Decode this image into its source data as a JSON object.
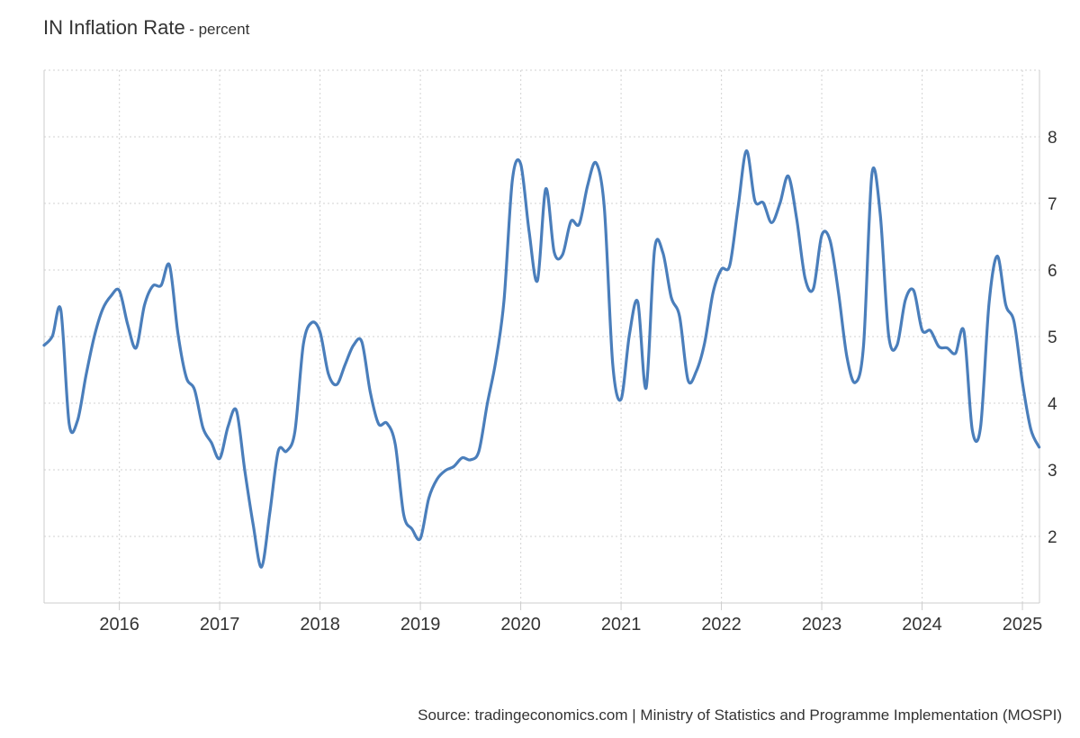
{
  "header": {
    "title": "IN Inflation Rate",
    "unit": "- percent"
  },
  "footer": {
    "source": "Source: tradingeconomics.com | Ministry of Statistics and Programme Implementation (MOSPI)"
  },
  "colors": {
    "line": "#4a7ebb",
    "grid": "#d9d9d9",
    "axis": "#cccccc",
    "text": "#333333"
  },
  "chart_data": {
    "type": "line",
    "title": "IN Inflation Rate",
    "ylabel": "percent",
    "xlabel": "",
    "ylim": [
      1.0,
      9.0
    ],
    "xlim": [
      2015.25,
      2025.17
    ],
    "yticks": [
      2,
      3,
      4,
      5,
      6,
      7,
      8
    ],
    "xticks": [
      "2016",
      "2017",
      "2018",
      "2019",
      "2020",
      "2021",
      "2022",
      "2023",
      "2024",
      "2025"
    ],
    "grid": true,
    "legend": "none",
    "series": [
      {
        "x": [
          "2015-04",
          "2015-05",
          "2015-06",
          "2015-07",
          "2015-08",
          "2015-09",
          "2015-10",
          "2015-11",
          "2015-12",
          "2016-01",
          "2016-02",
          "2016-03",
          "2016-04",
          "2016-05",
          "2016-06",
          "2016-07",
          "2016-08",
          "2016-09",
          "2016-10",
          "2016-11",
          "2016-12",
          "2017-01",
          "2017-02",
          "2017-03",
          "2017-04",
          "2017-05",
          "2017-06",
          "2017-07",
          "2017-08",
          "2017-09",
          "2017-10",
          "2017-11",
          "2017-12",
          "2018-01",
          "2018-02",
          "2018-03",
          "2018-04",
          "2018-05",
          "2018-06",
          "2018-07",
          "2018-08",
          "2018-09",
          "2018-10",
          "2018-11",
          "2018-12",
          "2019-01",
          "2019-02",
          "2019-03",
          "2019-04",
          "2019-05",
          "2019-06",
          "2019-07",
          "2019-08",
          "2019-09",
          "2019-10",
          "2019-11",
          "2019-12",
          "2020-01",
          "2020-02",
          "2020-03",
          "2020-04",
          "2020-05",
          "2020-06",
          "2020-07",
          "2020-08",
          "2020-09",
          "2020-10",
          "2020-11",
          "2020-12",
          "2021-01",
          "2021-02",
          "2021-03",
          "2021-04",
          "2021-05",
          "2021-06",
          "2021-07",
          "2021-08",
          "2021-09",
          "2021-10",
          "2021-11",
          "2021-12",
          "2022-01",
          "2022-02",
          "2022-03",
          "2022-04",
          "2022-05",
          "2022-06",
          "2022-07",
          "2022-08",
          "2022-09",
          "2022-10",
          "2022-11",
          "2022-12",
          "2023-01",
          "2023-02",
          "2023-03",
          "2023-04",
          "2023-05",
          "2023-06",
          "2023-07",
          "2023-08",
          "2023-09",
          "2023-10",
          "2023-11",
          "2023-12",
          "2024-01",
          "2024-02",
          "2024-03",
          "2024-04",
          "2024-05",
          "2024-06",
          "2024-07",
          "2024-08",
          "2024-09",
          "2024-10",
          "2024-11",
          "2024-12",
          "2025-01",
          "2025-02",
          "2025-03"
        ],
        "values": [
          4.87,
          5.01,
          5.4,
          3.69,
          3.74,
          4.41,
          5.0,
          5.41,
          5.61,
          5.69,
          5.18,
          4.83,
          5.47,
          5.76,
          5.77,
          6.07,
          5.05,
          4.39,
          4.2,
          3.63,
          3.41,
          3.17,
          3.65,
          3.89,
          2.99,
          2.18,
          1.54,
          2.36,
          3.28,
          3.28,
          3.58,
          4.88,
          5.21,
          5.07,
          4.44,
          4.28,
          4.58,
          4.87,
          4.92,
          4.17,
          3.69,
          3.7,
          3.38,
          2.33,
          2.11,
          1.97,
          2.57,
          2.86,
          2.99,
          3.05,
          3.18,
          3.15,
          3.28,
          3.99,
          4.62,
          5.54,
          7.35,
          7.59,
          6.58,
          5.84,
          7.22,
          6.27,
          6.23,
          6.73,
          6.69,
          7.27,
          7.61,
          6.93,
          4.59,
          4.06,
          5.03,
          5.52,
          4.23,
          6.3,
          6.26,
          5.59,
          5.3,
          4.35,
          4.48,
          4.91,
          5.66,
          6.01,
          6.07,
          6.95,
          7.79,
          7.04,
          7.01,
          6.71,
          7.0,
          7.41,
          6.77,
          5.88,
          5.72,
          6.52,
          6.44,
          5.66,
          4.7,
          4.31,
          4.87,
          7.44,
          6.83,
          5.02,
          4.87,
          5.55,
          5.69,
          5.1,
          5.09,
          4.85,
          4.83,
          4.75,
          5.08,
          3.6,
          3.65,
          5.49,
          6.21,
          5.48,
          5.22,
          4.31,
          3.61,
          3.34
        ]
      }
    ],
    "source": "Source: tradingeconomics.com | Ministry of Statistics and Programme Implementation (MOSPI)"
  }
}
